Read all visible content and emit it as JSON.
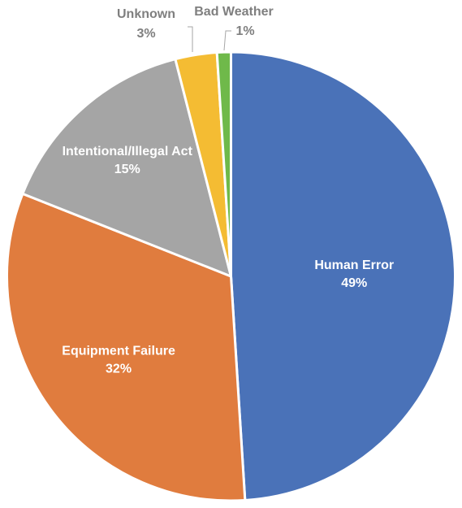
{
  "chart_data": {
    "type": "pie",
    "title": "",
    "categories": [
      "Human Error",
      "Equipment Failure",
      "Intentional/Illegal Act",
      "Unknown",
      "Bad Weather"
    ],
    "values": [
      49,
      32,
      15,
      3,
      1
    ],
    "value_labels": [
      "49%",
      "32%",
      "15%",
      "3%",
      "1%"
    ],
    "colors": [
      "#4a72b8",
      "#e07c3e",
      "#a5a5a5",
      "#f4bc33",
      "#6fb94a"
    ],
    "start_angle": "12 o'clock",
    "direction": "clockwise",
    "legend": "none",
    "label_style": {
      "inside": [
        true,
        true,
        true,
        false,
        false
      ]
    }
  }
}
